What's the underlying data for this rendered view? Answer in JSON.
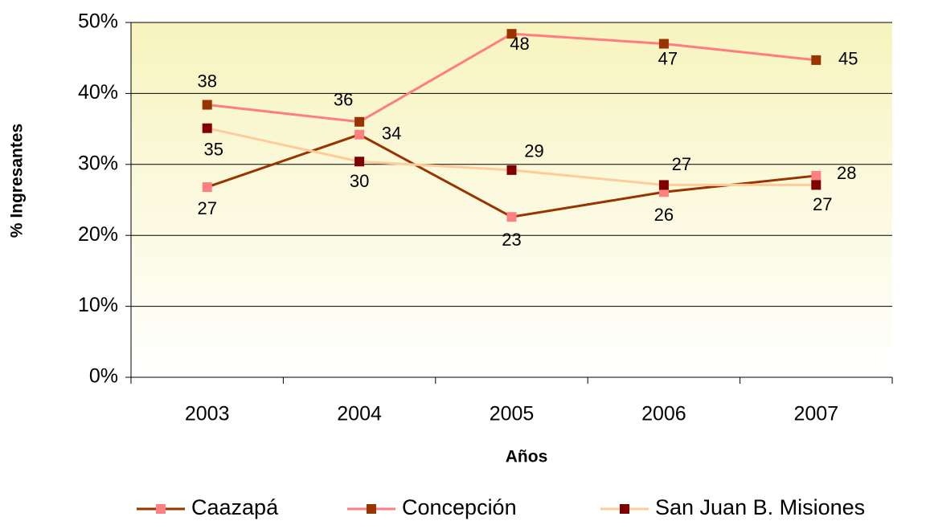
{
  "chart_data": {
    "type": "line",
    "categories": [
      "2003",
      "2004",
      "2005",
      "2006",
      "2007"
    ],
    "xlabel": "Años",
    "ylabel": "% Ingresantes",
    "ylim": [
      0,
      50
    ],
    "yticks": [
      {
        "value": 0,
        "label": "0%"
      },
      {
        "value": 10,
        "label": "10%"
      },
      {
        "value": 20,
        "label": "20%"
      },
      {
        "value": 30,
        "label": "30%"
      },
      {
        "value": 40,
        "label": "40%"
      },
      {
        "value": 50,
        "label": "50%"
      }
    ],
    "grid": true,
    "legend": "bottom",
    "series": [
      {
        "name": "Caazapá",
        "color": "#993300",
        "marker_color": "#FF8080",
        "values": [
          26.8,
          34.2,
          22.6,
          26.1,
          28.4
        ],
        "value_labels": [
          "27",
          "34",
          "23",
          "26",
          "28"
        ]
      },
      {
        "name": "Concepción",
        "color": "#FF7C80",
        "marker_color": "#993300",
        "values": [
          38.4,
          36,
          48.4,
          47,
          44.7
        ],
        "value_labels": [
          "38",
          "36",
          "48",
          "47",
          "45"
        ]
      },
      {
        "name": "San Juan B. Misiones",
        "color": "#FFCC99",
        "marker_color": "#800000",
        "values": [
          35.1,
          30.4,
          29.2,
          27.1,
          27.1
        ],
        "value_labels": [
          "35",
          "30",
          "29",
          "27",
          "27"
        ]
      }
    ]
  }
}
